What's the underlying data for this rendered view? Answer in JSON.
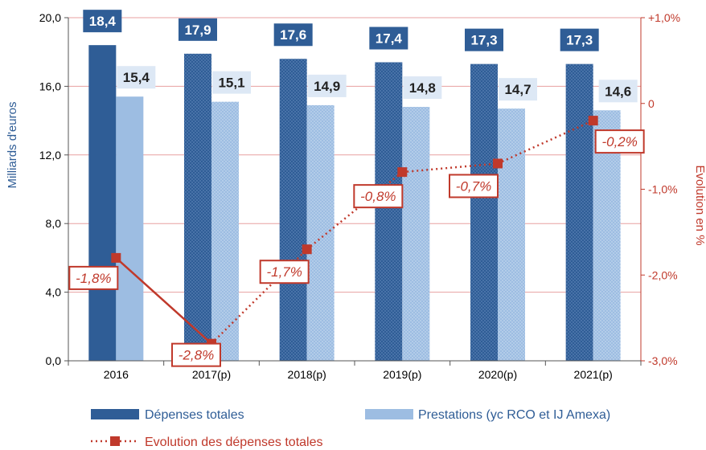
{
  "chart_data": {
    "type": "bar",
    "categories": [
      "2016",
      "2017(p)",
      "2018(p)",
      "2019(p)",
      "2020(p)",
      "2021(p)"
    ],
    "series": [
      {
        "name": "Dépenses totales",
        "kind": "bar",
        "axis": "left",
        "values": [
          18.4,
          17.9,
          17.6,
          17.4,
          17.3,
          17.3
        ],
        "labels": [
          "18,4",
          "17,9",
          "17,6",
          "17,4",
          "17,3",
          "17,3"
        ]
      },
      {
        "name": "Prestations (yc RCO et IJ Amexa)",
        "kind": "bar",
        "axis": "left",
        "values": [
          15.4,
          15.1,
          14.9,
          14.8,
          14.7,
          14.6
        ],
        "labels": [
          "15,4",
          "15,1",
          "14,9",
          "14,8",
          "14,7",
          "14,6"
        ]
      },
      {
        "name": "Evolution des dépenses totales",
        "kind": "line",
        "axis": "right",
        "values": [
          -1.8,
          -2.8,
          -1.7,
          -0.8,
          -0.7,
          -0.2
        ],
        "labels": [
          "-1,8%",
          "-2,8%",
          "-1,7%",
          "-0,8%",
          "-0,7%",
          "-0,2%"
        ]
      }
    ],
    "ylabel": "Milliards d'euros",
    "ylim": [
      0,
      20
    ],
    "yticks": [
      "0,0",
      "4,0",
      "8,0",
      "12,0",
      "16,0",
      "20,0"
    ],
    "y2label": "Evolution en %",
    "y2lim": [
      -3,
      1
    ],
    "y2ticks": [
      "-3,0%",
      "-2,0%",
      "-1,0%",
      "0",
      "+1,0%"
    ],
    "grid": true,
    "legend_position": "bottom",
    "colors": {
      "dark_bar": "#2f5d96",
      "light_bar": "#9dbde2",
      "line": "#c0392b",
      "grid": "#e8a0a0"
    }
  }
}
